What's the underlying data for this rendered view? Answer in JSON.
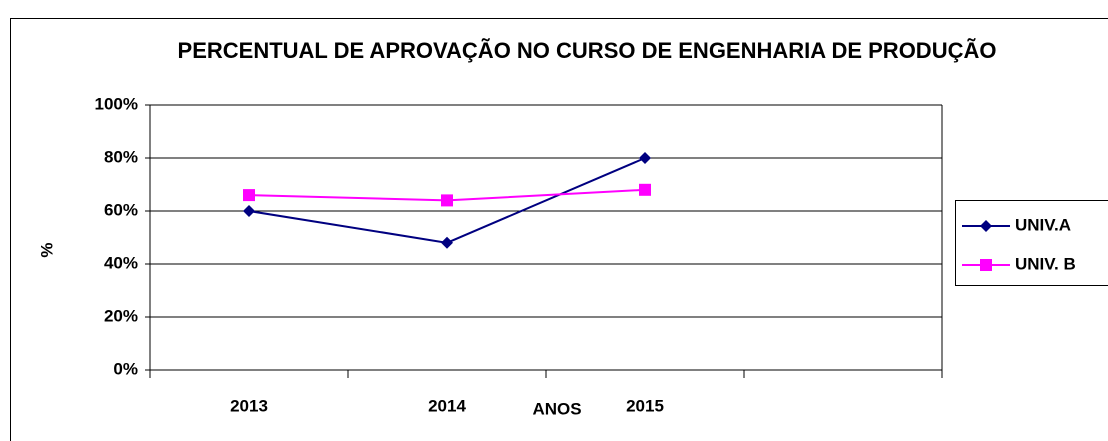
{
  "chart_data": {
    "type": "line",
    "title": "PERCENTUAL DE APROVAÇÃO NO CURSO DE ENGENHARIA DE PRODUÇÃO",
    "x_label": "ANOS",
    "y_label": "%",
    "categories": [
      "2013",
      "2014",
      "2015",
      null
    ],
    "series": [
      {
        "name": "UNIV.A",
        "color": "#000080",
        "marker": "diamond",
        "values": [
          60,
          48,
          80,
          null
        ]
      },
      {
        "name": "UNIV. B",
        "color": "#ff00ff",
        "marker": "square",
        "values": [
          66,
          64,
          68,
          null
        ]
      }
    ],
    "ylim": [
      0,
      100
    ],
    "yticks": [
      {
        "value": 0,
        "label": "0%"
      },
      {
        "value": 20,
        "label": "20%"
      },
      {
        "value": 40,
        "label": "40%"
      },
      {
        "value": 60,
        "label": "60%"
      },
      {
        "value": 80,
        "label": "80%"
      },
      {
        "value": 100,
        "label": "100%"
      }
    ],
    "grid": true,
    "legend": "right"
  }
}
